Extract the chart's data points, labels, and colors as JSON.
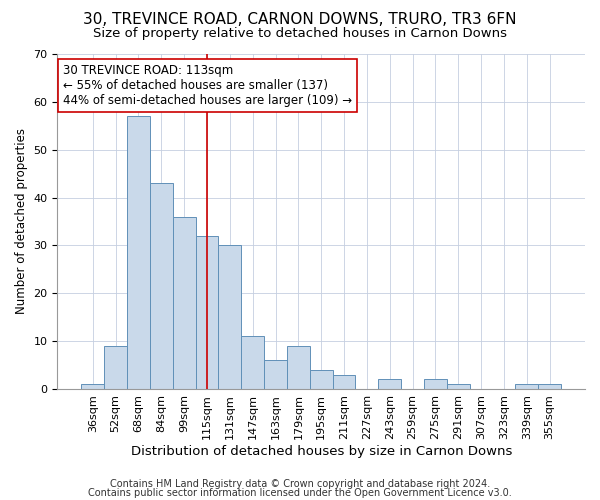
{
  "title": "30, TREVINCE ROAD, CARNON DOWNS, TRURO, TR3 6FN",
  "subtitle": "Size of property relative to detached houses in Carnon Downs",
  "xlabel": "Distribution of detached houses by size in Carnon Downs",
  "ylabel": "Number of detached properties",
  "bar_labels": [
    "36sqm",
    "52sqm",
    "68sqm",
    "84sqm",
    "99sqm",
    "115sqm",
    "131sqm",
    "147sqm",
    "163sqm",
    "179sqm",
    "195sqm",
    "211sqm",
    "227sqm",
    "243sqm",
    "259sqm",
    "275sqm",
    "291sqm",
    "307sqm",
    "323sqm",
    "339sqm",
    "355sqm"
  ],
  "bar_values": [
    1,
    9,
    57,
    43,
    36,
    32,
    30,
    11,
    6,
    9,
    4,
    3,
    0,
    2,
    0,
    2,
    1,
    0,
    0,
    1,
    1
  ],
  "bar_color": "#c9d9ea",
  "bar_edge_color": "#6090b8",
  "vline_x_index": 5,
  "vline_color": "#cc0000",
  "ylim": [
    0,
    70
  ],
  "yticks": [
    0,
    10,
    20,
    30,
    40,
    50,
    60,
    70
  ],
  "annotation_text": "30 TREVINCE ROAD: 113sqm\n← 55% of detached houses are smaller (137)\n44% of semi-detached houses are larger (109) →",
  "annotation_box_edge_color": "#cc0000",
  "footnote1": "Contains HM Land Registry data © Crown copyright and database right 2024.",
  "footnote2": "Contains public sector information licensed under the Open Government Licence v3.0.",
  "title_fontsize": 11,
  "subtitle_fontsize": 9.5,
  "xlabel_fontsize": 9.5,
  "ylabel_fontsize": 8.5,
  "tick_fontsize": 8,
  "annotation_fontsize": 8.5,
  "footnote_fontsize": 7
}
